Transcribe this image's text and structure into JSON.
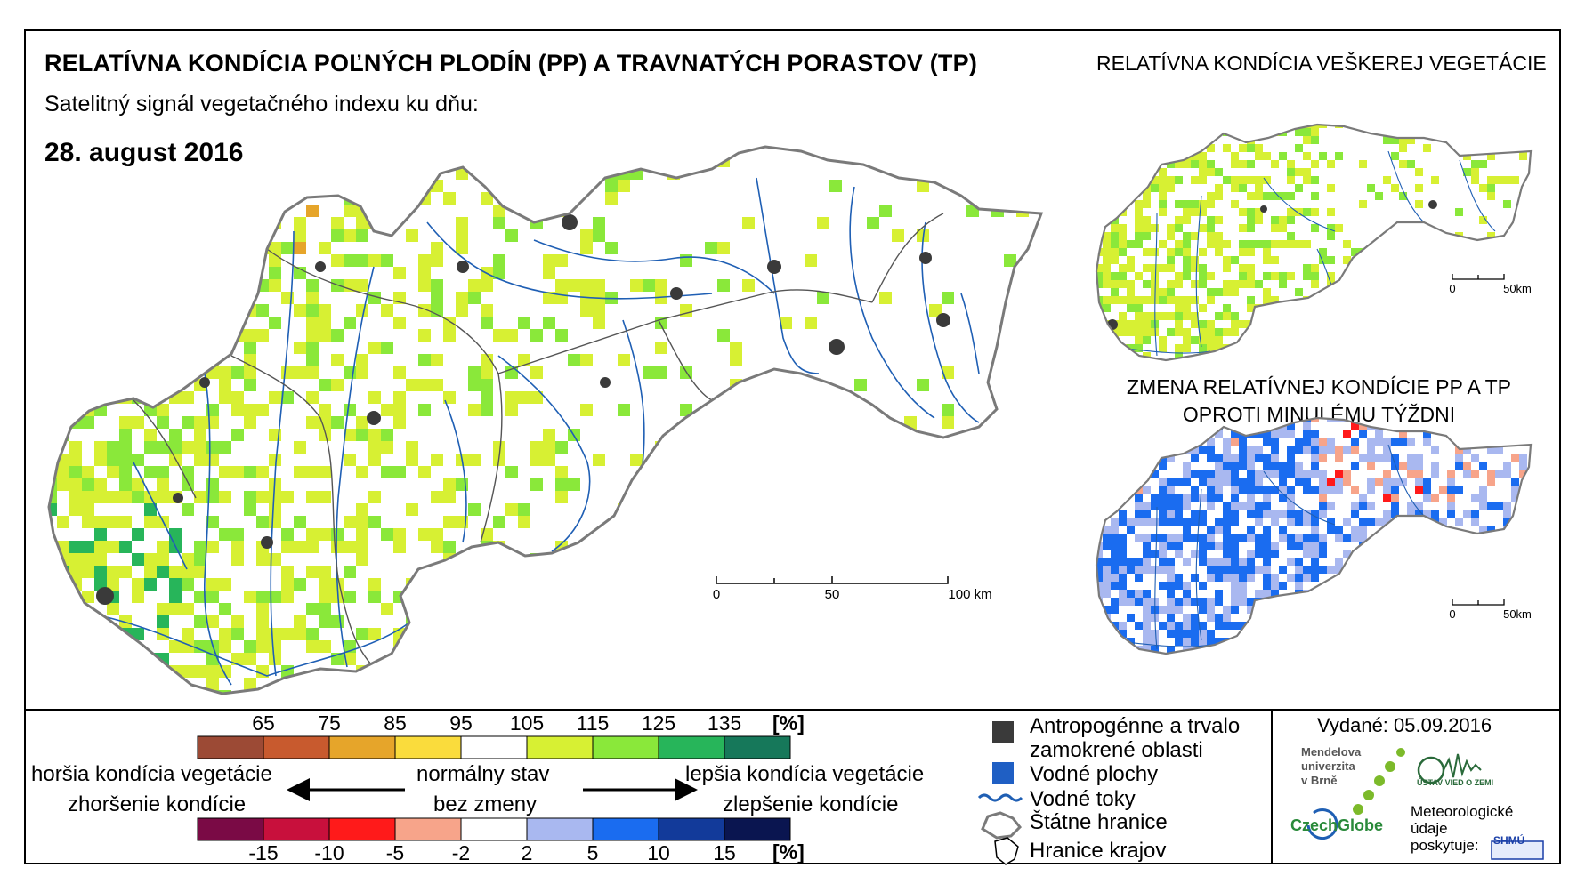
{
  "title": "RELATÍVNA KONDÍCIA POĽNÝCH PLODÍN (PP) A TRAVNATÝCH PORASTOV (TP)",
  "subtitle": "Satelitný signál vegetačného indexu ku dňu:",
  "date": "28. august 2016",
  "right_title": "RELATÍVNA KONDÍCIA VEŠKEREJ VEGETÁCIE",
  "change_title_line1": "ZMENA RELATÍVNEJ KONDÍCIE PP A TP",
  "change_title_line2": "OPROTI MINULÉMU TÝŽDNI",
  "main_scale": {
    "labels": [
      "0",
      "50",
      "100 km"
    ]
  },
  "mini_scale_top": {
    "labels": [
      "0",
      "50km"
    ]
  },
  "mini_scale_bottom": {
    "labels": [
      "0",
      "50km"
    ]
  },
  "condition_legend": {
    "unit": "[%]",
    "ticks": [
      "65",
      "75",
      "85",
      "95",
      "105",
      "115",
      "125",
      "135"
    ],
    "colors": [
      "#9c4a35",
      "#c85a2e",
      "#e6a52a",
      "#fadc3c",
      "#ffffff",
      "#d7f033",
      "#8ae83a",
      "#27b55a",
      "#16785a"
    ]
  },
  "change_legend": {
    "unit": "[%]",
    "ticks": [
      "-15",
      "-10",
      "-5",
      "-2",
      "2",
      "5",
      "10",
      "15"
    ],
    "colors": [
      "#7a0a45",
      "#c8103c",
      "#ff1a1a",
      "#f7a48a",
      "#ffffff",
      "#a9b8f0",
      "#1a6cf0",
      "#123a9a",
      "#0a1550"
    ]
  },
  "arrow_labels": {
    "worse_condition": "horšia kondícia vegetácie",
    "worse_change": "zhoršenie kondície",
    "normal": "normálny stav",
    "no_change": "bez zmeny",
    "better_condition": "lepšia kondícia vegetácie",
    "better_change": "zlepšenie kondície"
  },
  "map_legend": {
    "anthropogenic_line1": "Antropogénne a trvalo",
    "anthropogenic_line2": "zamokrené oblasti",
    "water_areas": "Vodné plochy",
    "rivers": "Vodné toky",
    "state_border": "Štátne hranice",
    "region_border": "Hranice krajov"
  },
  "colors": {
    "anthropogenic": "#3a3a3a",
    "water": "#1f5fc4",
    "river": "#1f5fb4"
  },
  "issued": "Vydané: 05.09.2016",
  "logos": {
    "mendel_line1": "Mendelova",
    "mendel_line2": "univerzita",
    "mendel_line3": "v Brně",
    "czechglobe": "CzechGlobe",
    "uvz": "ÚSTAV VIED O ZEMI",
    "meteo_line1": "Meteorologické",
    "meteo_line2": "údaje",
    "meteo_line3": "poskytuje:",
    "shmu": "SHMÚ"
  }
}
